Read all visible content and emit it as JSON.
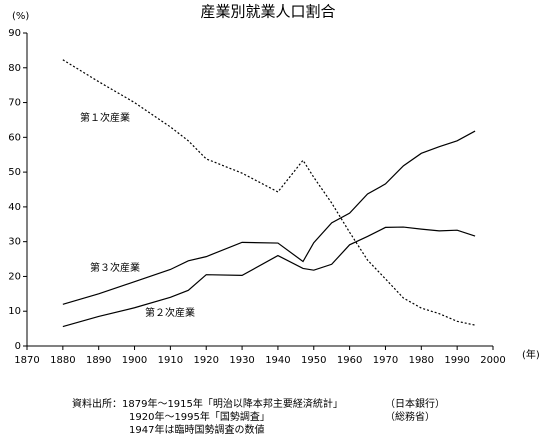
{
  "chart_data": {
    "type": "line",
    "title": "産業別就業人口割合",
    "y_unit": "(%)",
    "x_unit": "(年)",
    "x": [
      1880,
      1890,
      1900,
      1910,
      1915,
      1920,
      1930,
      1940,
      1947,
      1950,
      1955,
      1960,
      1965,
      1970,
      1975,
      1980,
      1985,
      1990,
      1995
    ],
    "series": [
      {
        "name": "第１次産業",
        "color": "#000",
        "dash": "dotted",
        "values": [
          82.3,
          76,
          70,
          63,
          59,
          53.8,
          49.7,
          44.3,
          53.4,
          48.5,
          41.1,
          32.7,
          24.7,
          19.3,
          13.8,
          10.9,
          9.3,
          7.1,
          6.0
        ]
      },
      {
        "name": "第２次産業",
        "color": "#000",
        "dash": "solid",
        "values": [
          5.6,
          8.5,
          11,
          14,
          16,
          20.5,
          20.3,
          26,
          22.3,
          21.8,
          23.5,
          29.1,
          31.5,
          34.1,
          34.2,
          33.6,
          33.1,
          33.3,
          31.6
        ]
      },
      {
        "name": "第３次産業",
        "color": "#000",
        "dash": "solid",
        "values": [
          12,
          15,
          18.5,
          22,
          24.5,
          25.7,
          29.8,
          29.6,
          24.3,
          29.7,
          35.4,
          38.2,
          43.7,
          46.6,
          51.8,
          55.4,
          57.3,
          59.0,
          61.8
        ]
      }
    ],
    "xlim": [
      1870,
      2000
    ],
    "xticks": [
      1870,
      1880,
      1890,
      1900,
      1910,
      1920,
      1930,
      1940,
      1950,
      1960,
      1970,
      1980,
      1990,
      2000
    ],
    "ylim": [
      0,
      90
    ],
    "yticks": [
      0,
      10,
      20,
      30,
      40,
      50,
      60,
      70,
      80,
      90
    ],
    "grid": false,
    "source_notes": [
      [
        "資料出所：1879年～1915年「明治以降本邦主要経済統計」",
        "（日本銀行）"
      ],
      [
        "1920年～1995年「国勢調査」",
        "（総務省）"
      ],
      [
        "1947年は臨時国勢調査の数値",
        ""
      ]
    ]
  }
}
